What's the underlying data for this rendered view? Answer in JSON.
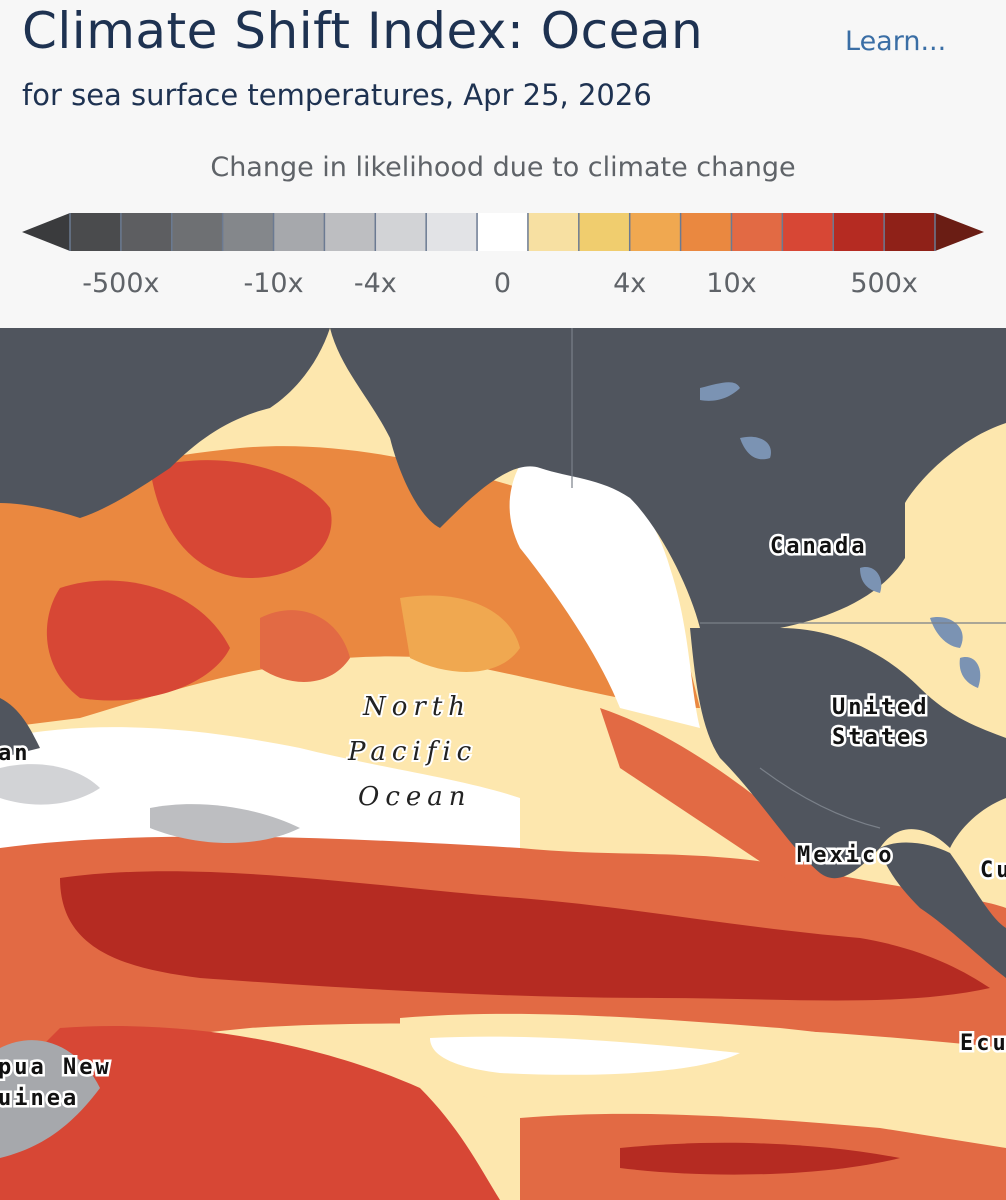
{
  "header": {
    "title": "Climate Shift Index: Ocean",
    "learn_link": "Learn...",
    "subtitle": "for sea surface temperatures, Apr 25, 2026"
  },
  "legend": {
    "title": "Change in likelihood due to climate change",
    "tick_labels": [
      "-500x",
      "-10x",
      "-4x",
      "0",
      "4x",
      "10x",
      "500x"
    ],
    "colors": [
      "#4a4b4d",
      "#5d5e61",
      "#6e7073",
      "#84878b",
      "#a6a8ac",
      "#bdbec1",
      "#d2d3d6",
      "#e2e3e6",
      "#ffffff",
      "#f7e0a2",
      "#f0cd6e",
      "#f0a850",
      "#ea8840",
      "#e26a44",
      "#d74735",
      "#b52b22",
      "#8f2118"
    ],
    "arrow_left_color": "#3a3b3d",
    "arrow_right_color": "#6a1d14"
  },
  "map": {
    "labels": {
      "canada": "Canada",
      "us_line1": "United",
      "us_line2": "States",
      "mexico": "Mexico",
      "ocean_line1": "North",
      "ocean_line2": "Pacific",
      "ocean_line3": "Ocean",
      "japan_partial": "an",
      "png_line1": "pua New",
      "png_line2": "uinea",
      "ecuador_partial": "Ecu",
      "cuba_partial": "Cu"
    },
    "land_color": "#50555e",
    "lake_color": "#7b93b3"
  }
}
